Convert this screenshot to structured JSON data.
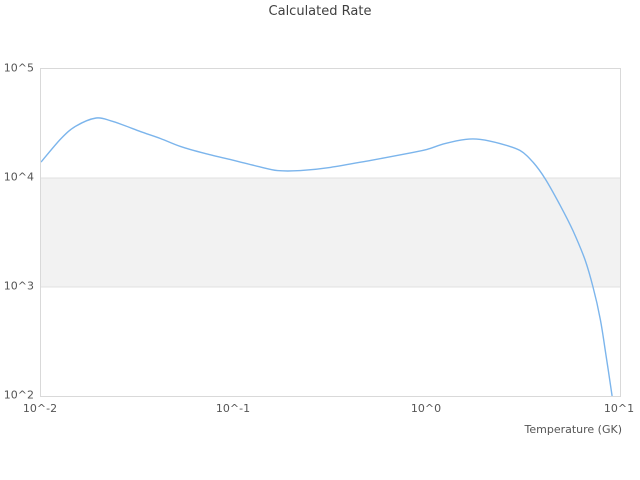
{
  "chart_data": {
    "type": "line",
    "title": "Calculated Rate",
    "xlabel": "Temperature (GK)",
    "ylabel": "",
    "x_scale": "log",
    "y_scale": "log",
    "xlim": [
      0.01,
      10
    ],
    "ylim": [
      100,
      100000
    ],
    "grid": "horizontal lines at 10^4 and 10^3 only",
    "legend_position": "none",
    "x_ticks": [
      {
        "value": 0.01,
        "label": "10^-2"
      },
      {
        "value": 0.1,
        "label": "10^-1"
      },
      {
        "value": 1,
        "label": "10^0"
      },
      {
        "value": 10,
        "label": "10^1"
      }
    ],
    "y_ticks": [
      {
        "value": 100000,
        "label": "10^5"
      },
      {
        "value": 10000,
        "label": "10^4"
      },
      {
        "value": 1000,
        "label": "10^3"
      },
      {
        "value": 100,
        "label": "10^2"
      }
    ],
    "highlight_band": {
      "from": 1000,
      "to": 10000
    },
    "colors": {
      "line": "#7cb5ec",
      "band_fill": "#f2f2f2",
      "band_edge": "#e0e0e0",
      "plot_border": "#d9d9d9",
      "tick_text": "#555555",
      "title_text": "#404040"
    },
    "series": [
      {
        "name": "Calculated Rate",
        "points": [
          {
            "T": 0.01,
            "rate": 14000
          },
          {
            "T": 0.0127,
            "rate": 23000
          },
          {
            "T": 0.0152,
            "rate": 30000
          },
          {
            "T": 0.0193,
            "rate": 35500
          },
          {
            "T": 0.023,
            "rate": 33500
          },
          {
            "T": 0.0275,
            "rate": 30000
          },
          {
            "T": 0.0329,
            "rate": 26600
          },
          {
            "T": 0.0417,
            "rate": 23000
          },
          {
            "T": 0.053,
            "rate": 19400
          },
          {
            "T": 0.0714,
            "rate": 16700
          },
          {
            "T": 0.1,
            "rate": 14500
          },
          {
            "T": 0.135,
            "rate": 12700
          },
          {
            "T": 0.168,
            "rate": 11700
          },
          {
            "T": 0.221,
            "rate": 11700
          },
          {
            "T": 0.316,
            "rate": 12500
          },
          {
            "T": 0.51,
            "rate": 14500
          },
          {
            "T": 0.82,
            "rate": 17000
          },
          {
            "T": 1.0,
            "rate": 18300
          },
          {
            "T": 1.24,
            "rate": 20700
          },
          {
            "T": 1.58,
            "rate": 22600
          },
          {
            "T": 1.89,
            "rate": 22600
          },
          {
            "T": 2.39,
            "rate": 20700
          },
          {
            "T": 3.03,
            "rate": 17900
          },
          {
            "T": 3.55,
            "rate": 13900
          },
          {
            "T": 4.1,
            "rate": 9800
          },
          {
            "T": 4.9,
            "rate": 5600
          },
          {
            "T": 5.7,
            "rate": 3300
          },
          {
            "T": 6.6,
            "rate": 1760
          },
          {
            "T": 7.25,
            "rate": 1000
          },
          {
            "T": 7.9,
            "rate": 510
          },
          {
            "T": 8.45,
            "rate": 240
          },
          {
            "T": 9.1,
            "rate": 100
          }
        ]
      }
    ]
  }
}
